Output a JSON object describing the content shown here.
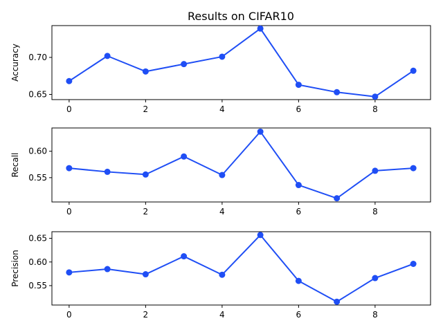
{
  "figure": {
    "title": "Results on CIFAR10"
  },
  "chart_data": [
    {
      "type": "line",
      "title": "Results on CIFAR10",
      "xlabel": "",
      "ylabel": "Accuracy",
      "x": [
        0,
        1,
        2,
        3,
        4,
        5,
        6,
        7,
        8,
        9
      ],
      "values": [
        0.668,
        0.702,
        0.681,
        0.691,
        0.701,
        0.739,
        0.663,
        0.653,
        0.647,
        0.682
      ],
      "xlim": [
        -0.45,
        9.45
      ],
      "ylim": [
        0.643,
        0.743
      ],
      "xticks": [
        0,
        2,
        4,
        6,
        8
      ],
      "xtick_labels": [
        "0",
        "2",
        "4",
        "6",
        "8"
      ],
      "yticks": [
        0.65,
        0.7
      ],
      "ytick_labels": [
        "0.65",
        "0.70"
      ],
      "color": "#1f4ef5",
      "grid": false
    },
    {
      "type": "line",
      "title": "",
      "xlabel": "",
      "ylabel": "Recall",
      "x": [
        0,
        1,
        2,
        3,
        4,
        5,
        6,
        7,
        8,
        9
      ],
      "values": [
        0.568,
        0.561,
        0.556,
        0.59,
        0.555,
        0.637,
        0.536,
        0.511,
        0.563,
        0.568
      ],
      "xlim": [
        -0.45,
        9.45
      ],
      "ylim": [
        0.504,
        0.644
      ],
      "xticks": [
        0,
        2,
        4,
        6,
        8
      ],
      "xtick_labels": [
        "0",
        "2",
        "4",
        "6",
        "8"
      ],
      "yticks": [
        0.55,
        0.6
      ],
      "ytick_labels": [
        "0.55",
        "0.60"
      ],
      "color": "#1f4ef5",
      "grid": false
    },
    {
      "type": "line",
      "title": "",
      "xlabel": "",
      "ylabel": "Precision",
      "x": [
        0,
        1,
        2,
        3,
        4,
        5,
        6,
        7,
        8,
        9
      ],
      "values": [
        0.578,
        0.585,
        0.574,
        0.612,
        0.573,
        0.657,
        0.56,
        0.516,
        0.566,
        0.596
      ],
      "xlim": [
        -0.45,
        9.45
      ],
      "ylim": [
        0.509,
        0.664
      ],
      "xticks": [
        0,
        2,
        4,
        6,
        8
      ],
      "xtick_labels": [
        "0",
        "2",
        "4",
        "6",
        "8"
      ],
      "yticks": [
        0.55,
        0.6,
        0.65
      ],
      "ytick_labels": [
        "0.55",
        "0.60",
        "0.65"
      ],
      "color": "#1f4ef5",
      "grid": false
    }
  ]
}
